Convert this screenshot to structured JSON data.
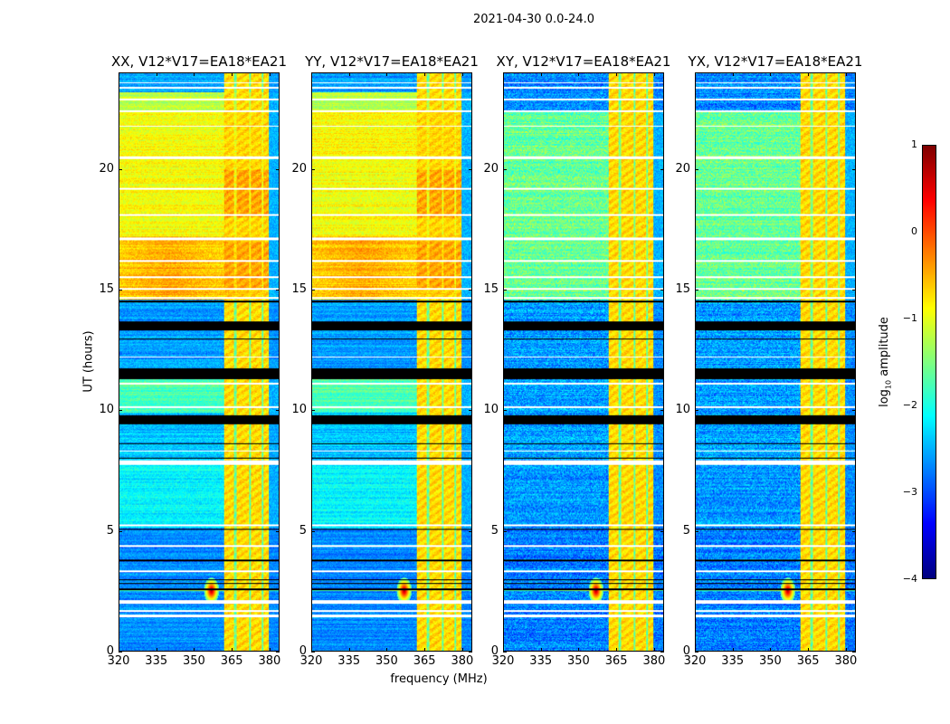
{
  "chart_data": {
    "type": "heatmap",
    "title": "2021-04-30 0.0-24.0",
    "xlabel": "frequency (MHz)",
    "ylabel": "UT (hours)",
    "xlim": [
      320,
      384
    ],
    "ylim": [
      0,
      24
    ],
    "xticks": [
      "320",
      "335",
      "350",
      "365",
      "380"
    ],
    "xtick_values": [
      320,
      335,
      350,
      365,
      380
    ],
    "yticks": [
      "0",
      "5",
      "10",
      "15",
      "20"
    ],
    "ytick_values": [
      0,
      5,
      10,
      15,
      20
    ],
    "colorbar": {
      "label": "log10 amplitude",
      "label_main": "log",
      "label_sub": "10",
      "label_rest": " amplitude",
      "range": [
        -4,
        1
      ],
      "ticks": [
        "1",
        "0",
        "−1",
        "−2",
        "−3",
        "−4"
      ],
      "tick_values": [
        1,
        0,
        -1,
        -2,
        -3,
        -4
      ],
      "colormap": "jet"
    },
    "panels": [
      {
        "title": "XX, V12*V17=EA18*EA21",
        "pol": "XX"
      },
      {
        "title": "YY, V12*V17=EA18*EA21",
        "pol": "YY"
      },
      {
        "title": "XY, V12*V17=EA18*EA21",
        "pol": "XY"
      },
      {
        "title": "YX, V12*V17=EA18*EA21",
        "pol": "YX"
      }
    ],
    "time_segments_log_amp": {
      "parallel": [
        [
          0,
          5.1,
          -2.7
        ],
        [
          5.1,
          7.8,
          -2.15
        ],
        [
          7.8,
          9.9,
          -2.4
        ],
        [
          9.9,
          11.6,
          -1.75
        ],
        [
          11.6,
          14.6,
          -2.6
        ],
        [
          14.6,
          17.2,
          -0.45
        ],
        [
          17.2,
          22.4,
          -0.9
        ],
        [
          22.4,
          23.2,
          -1.2
        ],
        [
          23.2,
          24,
          -2.6
        ]
      ],
      "cross": [
        [
          0,
          5.1,
          -2.75
        ],
        [
          5.1,
          7.8,
          -2.6
        ],
        [
          7.8,
          14.6,
          -2.6
        ],
        [
          14.6,
          22.4,
          -1.6
        ],
        [
          22.4,
          24,
          -2.7
        ]
      ]
    },
    "rfi_band_mhz": [
      362,
      380
    ],
    "rfi_level": -0.7,
    "rfi_gap_channels_mhz": [
      366.5,
      372.5,
      377.5
    ],
    "point_source": {
      "freq_mhz": 357,
      "ut_hours": 2.5,
      "log_amp": 0.9
    },
    "flagged_hours_white": [
      [
        1.4,
        1.5
      ],
      [
        1.6,
        1.68
      ],
      [
        1.95,
        2.1
      ],
      [
        3.28,
        3.35
      ],
      [
        4.3,
        4.38
      ],
      [
        5.18,
        5.25
      ],
      [
        7.72,
        7.92
      ],
      [
        8.28,
        8.34
      ],
      [
        10.08,
        10.15
      ],
      [
        11.08,
        11.14
      ],
      [
        12.18,
        12.24
      ],
      [
        14.62,
        14.7
      ],
      [
        15.0,
        15.06
      ],
      [
        15.5,
        15.56
      ],
      [
        16.18,
        16.24
      ],
      [
        17.08,
        17.16
      ],
      [
        18.08,
        18.14
      ],
      [
        19.18,
        19.24
      ],
      [
        20.45,
        20.55
      ],
      [
        21.78,
        21.84
      ],
      [
        22.38,
        22.46
      ],
      [
        22.88,
        22.94
      ],
      [
        23.38,
        23.44
      ],
      [
        23.58,
        23.64
      ]
    ],
    "flagged_hours_black": [
      [
        2.52,
        2.58
      ],
      [
        2.78,
        2.82
      ],
      [
        2.93,
        2.97
      ],
      [
        3.72,
        3.78
      ],
      [
        5.02,
        5.08
      ],
      [
        7.98,
        8.03
      ],
      [
        9.4,
        9.8
      ],
      [
        11.3,
        11.72
      ],
      [
        13.3,
        13.7
      ],
      [
        14.48,
        14.54
      ],
      [
        8.6,
        8.64
      ],
      [
        12.95,
        12.99
      ]
    ]
  }
}
